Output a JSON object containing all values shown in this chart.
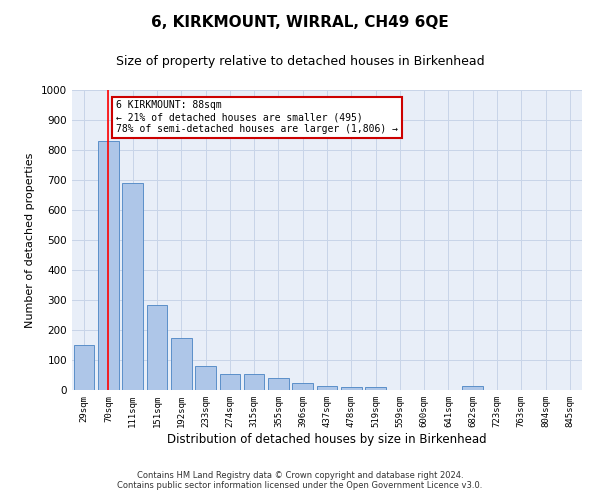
{
  "title": "6, KIRKMOUNT, WIRRAL, CH49 6QE",
  "subtitle": "Size of property relative to detached houses in Birkenhead",
  "xlabel": "Distribution of detached houses by size in Birkenhead",
  "ylabel": "Number of detached properties",
  "bar_labels": [
    "29sqm",
    "70sqm",
    "111sqm",
    "151sqm",
    "192sqm",
    "233sqm",
    "274sqm",
    "315sqm",
    "355sqm",
    "396sqm",
    "437sqm",
    "478sqm",
    "519sqm",
    "559sqm",
    "600sqm",
    "641sqm",
    "682sqm",
    "723sqm",
    "763sqm",
    "804sqm",
    "845sqm"
  ],
  "bar_values": [
    150,
    830,
    690,
    285,
    175,
    80,
    55,
    52,
    40,
    22,
    12,
    10,
    10,
    0,
    0,
    0,
    15,
    0,
    0,
    0,
    0
  ],
  "bar_color": "#aec6e8",
  "bar_edge_color": "#5b8fc9",
  "red_line_x": 1,
  "ylim": [
    0,
    1000
  ],
  "yticks": [
    0,
    100,
    200,
    300,
    400,
    500,
    600,
    700,
    800,
    900,
    1000
  ],
  "annotation_box_text": "6 KIRKMOUNT: 88sqm\n← 21% of detached houses are smaller (495)\n78% of semi-detached houses are larger (1,806) →",
  "annotation_box_color": "#ffffff",
  "annotation_box_edge_color": "#cc0000",
  "footer_line1": "Contains HM Land Registry data © Crown copyright and database right 2024.",
  "footer_line2": "Contains public sector information licensed under the Open Government Licence v3.0.",
  "background_color": "#ffffff",
  "plot_bg_color": "#e8eef8",
  "grid_color": "#c8d4e8",
  "title_fontsize": 11,
  "subtitle_fontsize": 9,
  "xlabel_fontsize": 8.5,
  "ylabel_fontsize": 8
}
